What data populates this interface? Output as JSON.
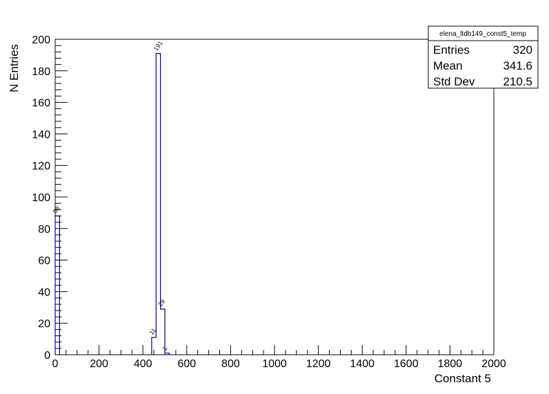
{
  "chart_data": {
    "type": "bar",
    "title": "",
    "xlabel": "Constant 5",
    "ylabel": "N Entries",
    "xlim": [
      0,
      2000
    ],
    "ylim": [
      0,
      200
    ],
    "bin_width": 20,
    "x_ticks": [
      0,
      200,
      400,
      600,
      800,
      1000,
      1200,
      1400,
      1600,
      1800,
      2000
    ],
    "y_ticks": [
      0,
      20,
      40,
      60,
      80,
      100,
      120,
      140,
      160,
      180,
      200
    ],
    "bins": [
      {
        "x": 0,
        "value": 88,
        "label": "88"
      },
      {
        "x": 440,
        "value": 11,
        "label": "11"
      },
      {
        "x": 460,
        "value": 191,
        "label": "191"
      },
      {
        "x": 480,
        "value": 29,
        "label": "29"
      },
      {
        "x": 500,
        "value": 1,
        "label": "1"
      }
    ],
    "line_color": "#000080",
    "grid": false,
    "legend": "none"
  },
  "stats_box": {
    "title": "elena_ltdb149_const5_temp",
    "rows": [
      {
        "label": "Entries",
        "value": "320"
      },
      {
        "label": "Mean",
        "value": "341.6"
      },
      {
        "label": "Std Dev",
        "value": "210.5"
      }
    ]
  }
}
